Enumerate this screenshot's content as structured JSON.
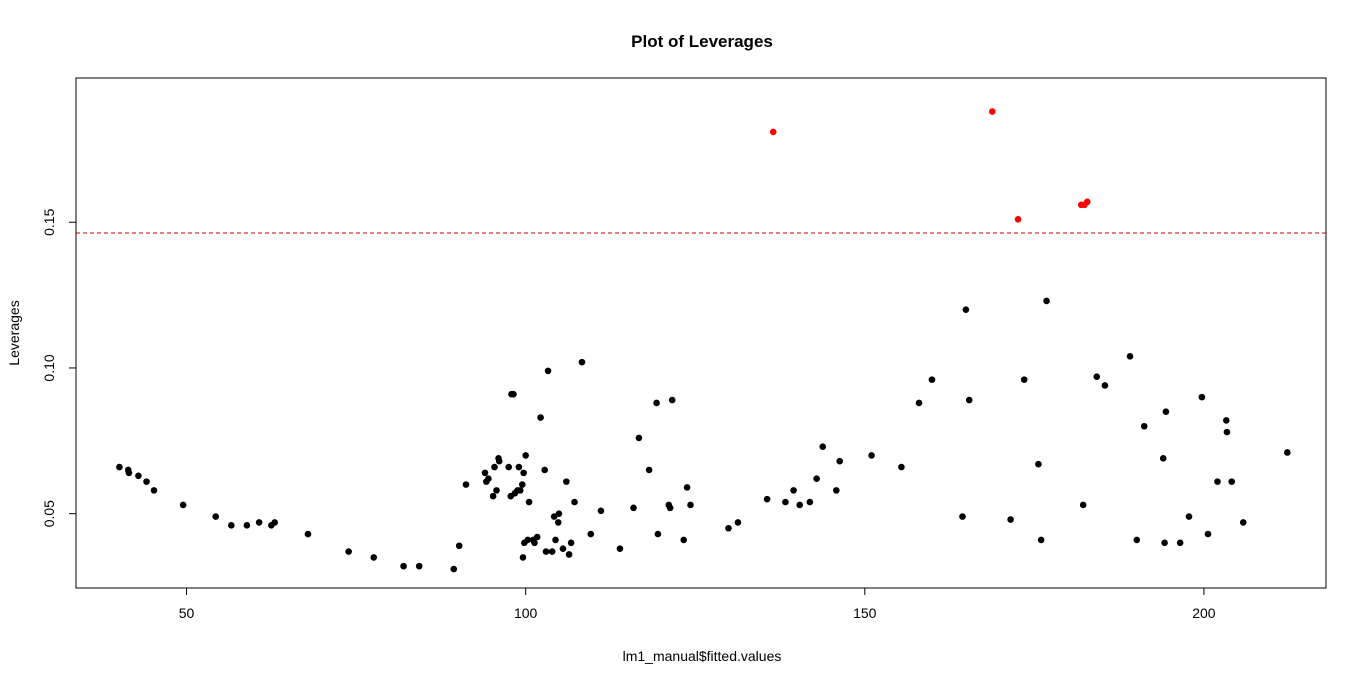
{
  "chart_data": {
    "type": "scatter",
    "title": "Plot of Leverages",
    "xlabel": "lm1_manual$fitted.values",
    "ylabel": "Leverages",
    "xlim": [
      33.7,
      218.0
    ],
    "ylim": [
      0.0245,
      0.1995
    ],
    "x_ticks": [
      50,
      100,
      150,
      200
    ],
    "x_tick_labels": [
      "50",
      "100",
      "150",
      "200"
    ],
    "y_ticks": [
      0.05,
      0.1,
      0.15
    ],
    "y_tick_labels": [
      "0.05",
      "0.10",
      "0.15"
    ],
    "threshold": {
      "y": 0.1463,
      "color": "#cc0000",
      "style": "dashed"
    },
    "grid": false,
    "legend": "none",
    "colors": {
      "normal": "#000000",
      "high": "#ff0000"
    },
    "series": [
      {
        "role": "normal",
        "points": [
          [
            40.1,
            0.066
          ],
          [
            41.4,
            0.065
          ],
          [
            41.5,
            0.064
          ],
          [
            42.9,
            0.063
          ],
          [
            44.1,
            0.061
          ],
          [
            45.2,
            0.058
          ],
          [
            49.5,
            0.053
          ],
          [
            54.3,
            0.049
          ],
          [
            56.6,
            0.046
          ],
          [
            58.9,
            0.046
          ],
          [
            60.7,
            0.047
          ],
          [
            62.5,
            0.046
          ],
          [
            63.0,
            0.047
          ],
          [
            67.9,
            0.043
          ],
          [
            73.9,
            0.037
          ],
          [
            77.6,
            0.035
          ],
          [
            82.0,
            0.032
          ],
          [
            84.3,
            0.032
          ],
          [
            89.4,
            0.031
          ],
          [
            90.2,
            0.039
          ],
          [
            91.2,
            0.06
          ],
          [
            94.0,
            0.064
          ],
          [
            94.2,
            0.061
          ],
          [
            94.5,
            0.062
          ],
          [
            95.2,
            0.056
          ],
          [
            95.4,
            0.066
          ],
          [
            95.7,
            0.058
          ],
          [
            96.0,
            0.069
          ],
          [
            96.1,
            0.068
          ],
          [
            97.5,
            0.066
          ],
          [
            97.8,
            0.056
          ],
          [
            97.9,
            0.091
          ],
          [
            98.2,
            0.091
          ],
          [
            98.4,
            0.057
          ],
          [
            98.8,
            0.058
          ],
          [
            99.0,
            0.066
          ],
          [
            99.2,
            0.058
          ],
          [
            99.5,
            0.06
          ],
          [
            99.6,
            0.035
          ],
          [
            99.7,
            0.064
          ],
          [
            99.8,
            0.04
          ],
          [
            100.0,
            0.07
          ],
          [
            100.3,
            0.041
          ],
          [
            100.5,
            0.054
          ],
          [
            101.1,
            0.041
          ],
          [
            101.3,
            0.04
          ],
          [
            101.7,
            0.042
          ],
          [
            102.2,
            0.083
          ],
          [
            102.8,
            0.065
          ],
          [
            103.0,
            0.037
          ],
          [
            103.3,
            0.099
          ],
          [
            103.9,
            0.037
          ],
          [
            104.2,
            0.049
          ],
          [
            104.4,
            0.041
          ],
          [
            104.8,
            0.047
          ],
          [
            104.9,
            0.05
          ],
          [
            105.5,
            0.038
          ],
          [
            106.0,
            0.061
          ],
          [
            106.4,
            0.036
          ],
          [
            106.7,
            0.04
          ],
          [
            107.2,
            0.054
          ],
          [
            108.3,
            0.102
          ],
          [
            109.6,
            0.043
          ],
          [
            111.1,
            0.051
          ],
          [
            113.9,
            0.038
          ],
          [
            115.9,
            0.052
          ],
          [
            116.7,
            0.076
          ],
          [
            118.2,
            0.065
          ],
          [
            119.3,
            0.088
          ],
          [
            119.5,
            0.043
          ],
          [
            121.1,
            0.053
          ],
          [
            121.3,
            0.052
          ],
          [
            121.6,
            0.089
          ],
          [
            123.3,
            0.041
          ],
          [
            123.8,
            0.059
          ],
          [
            124.3,
            0.053
          ],
          [
            129.9,
            0.045
          ],
          [
            131.3,
            0.047
          ],
          [
            135.6,
            0.055
          ],
          [
            138.3,
            0.054
          ],
          [
            139.5,
            0.058
          ],
          [
            140.4,
            0.053
          ],
          [
            141.9,
            0.054
          ],
          [
            142.9,
            0.062
          ],
          [
            143.8,
            0.073
          ],
          [
            145.8,
            0.058
          ],
          [
            146.3,
            0.068
          ],
          [
            151.0,
            0.07
          ],
          [
            155.4,
            0.066
          ],
          [
            158.0,
            0.088
          ],
          [
            159.9,
            0.096
          ],
          [
            164.4,
            0.049
          ],
          [
            164.9,
            0.12
          ],
          [
            165.4,
            0.089
          ],
          [
            171.5,
            0.048
          ],
          [
            173.5,
            0.096
          ],
          [
            175.6,
            0.067
          ],
          [
            176.0,
            0.041
          ],
          [
            176.8,
            0.123
          ],
          [
            182.2,
            0.053
          ],
          [
            184.2,
            0.097
          ],
          [
            185.4,
            0.094
          ],
          [
            189.1,
            0.104
          ],
          [
            190.1,
            0.041
          ],
          [
            191.2,
            0.08
          ],
          [
            194.0,
            0.069
          ],
          [
            194.2,
            0.04
          ],
          [
            194.4,
            0.085
          ],
          [
            196.5,
            0.04
          ],
          [
            197.8,
            0.049
          ],
          [
            199.7,
            0.09
          ],
          [
            200.6,
            0.043
          ],
          [
            202.0,
            0.061
          ],
          [
            203.3,
            0.082
          ],
          [
            203.4,
            0.078
          ],
          [
            204.1,
            0.061
          ],
          [
            205.8,
            0.047
          ],
          [
            212.3,
            0.071
          ]
        ]
      },
      {
        "role": "high",
        "points": [
          [
            136.5,
            0.181
          ],
          [
            168.8,
            0.188
          ],
          [
            172.6,
            0.151
          ],
          [
            181.9,
            0.156
          ],
          [
            182.4,
            0.156
          ],
          [
            182.8,
            0.157
          ]
        ]
      }
    ]
  }
}
